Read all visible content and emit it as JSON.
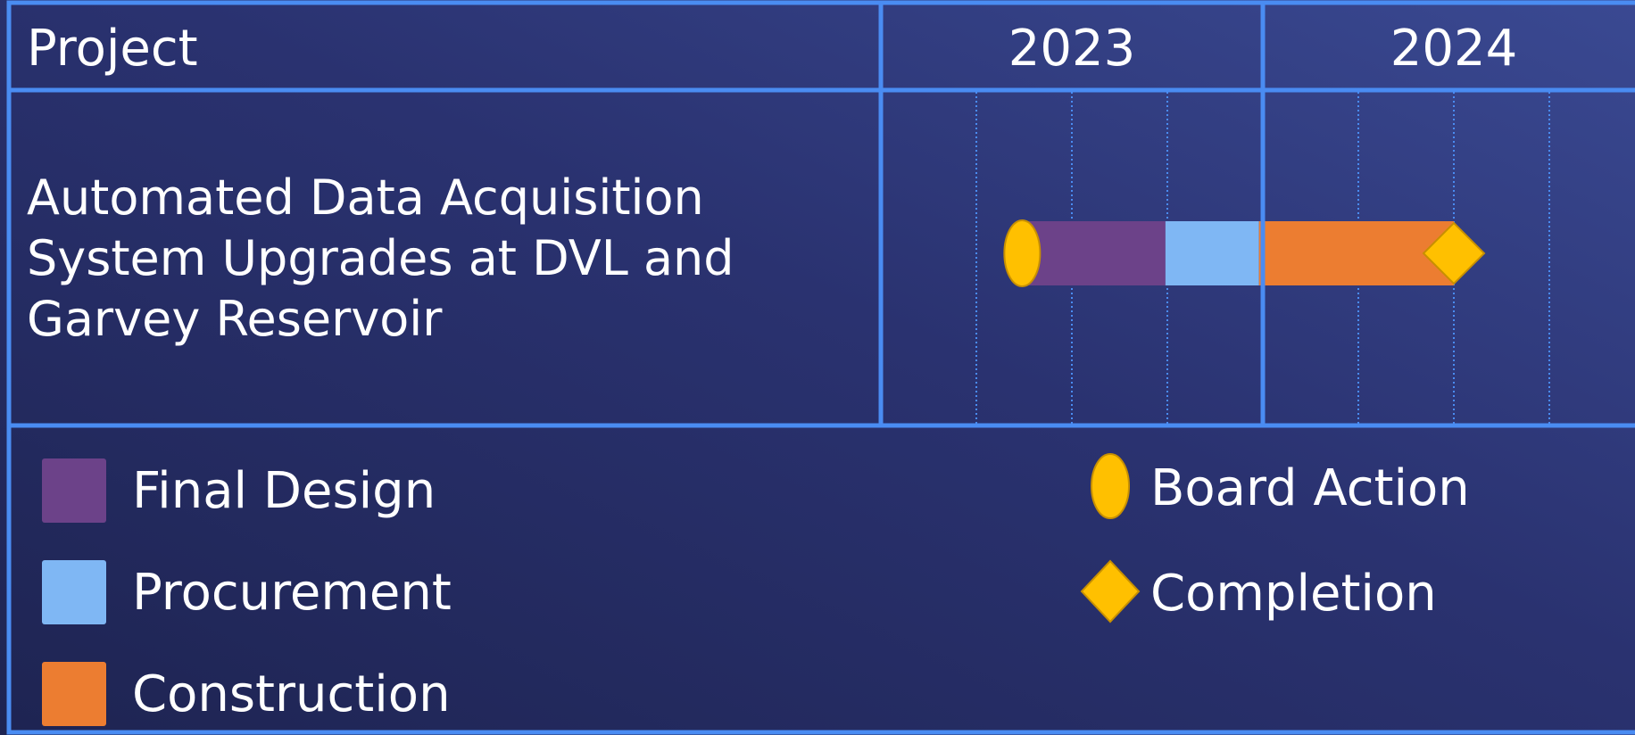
{
  "header": {
    "project": "Project",
    "years": [
      "2023",
      "2024"
    ]
  },
  "timeline": {
    "start": 2023,
    "end": 2025
  },
  "rows": [
    {
      "label_lines": [
        "Automated Data Acquisition",
        "System Upgrades at DVL and",
        "Garvey Reservoir"
      ],
      "board_action": 2023.37,
      "phases": [
        {
          "phase": "Final Design",
          "start": 2023.37,
          "end": 2023.745
        },
        {
          "phase": "Procurement",
          "start": 2023.745,
          "end": 2023.99
        },
        {
          "phase": "Construction",
          "start": 2023.99,
          "end": 2024.5
        }
      ],
      "completion": 2024.5
    }
  ],
  "legend": {
    "phases": [
      {
        "label": "Final Design",
        "color": "#6c4289"
      },
      {
        "label": "Procurement",
        "color": "#7fb7f4"
      },
      {
        "label": "Construction",
        "color": "#ec7d31"
      }
    ],
    "milestones": [
      {
        "label": "Board Action",
        "shape": "ellipse",
        "color": "#ffc000"
      },
      {
        "label": "Completion",
        "shape": "diamond",
        "color": "#ffc000"
      }
    ]
  }
}
